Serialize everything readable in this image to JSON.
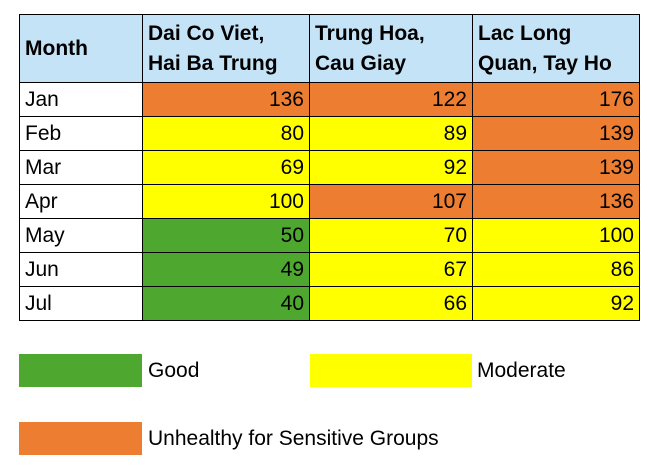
{
  "chart_data": {
    "type": "table",
    "header": {
      "month": "Month",
      "columns": [
        [
          "Dai Co Viet,",
          "Hai Ba Trung"
        ],
        [
          "Trung Hoa,",
          "Cau Giay"
        ],
        [
          "Lac Long",
          "Quan, Tay Ho"
        ]
      ]
    },
    "rows": [
      {
        "month": "Jan",
        "values": [
          136,
          122,
          176
        ],
        "levels": [
          "unhealthy",
          "unhealthy",
          "unhealthy"
        ]
      },
      {
        "month": "Feb",
        "values": [
          80,
          89,
          139
        ],
        "levels": [
          "moderate",
          "moderate",
          "unhealthy"
        ]
      },
      {
        "month": "Mar",
        "values": [
          69,
          92,
          139
        ],
        "levels": [
          "moderate",
          "moderate",
          "unhealthy"
        ]
      },
      {
        "month": "Apr",
        "values": [
          100,
          107,
          136
        ],
        "levels": [
          "moderate",
          "unhealthy",
          "unhealthy"
        ]
      },
      {
        "month": "May",
        "values": [
          50,
          70,
          100
        ],
        "levels": [
          "good",
          "moderate",
          "moderate"
        ]
      },
      {
        "month": "Jun",
        "values": [
          49,
          67,
          86
        ],
        "levels": [
          "good",
          "moderate",
          "moderate"
        ]
      },
      {
        "month": "Jul",
        "values": [
          40,
          66,
          92
        ],
        "levels": [
          "good",
          "moderate",
          "moderate"
        ]
      }
    ],
    "legend": [
      {
        "key": "good",
        "label": "Good",
        "color": "#4ea72e"
      },
      {
        "key": "moderate",
        "label": "Moderate",
        "color": "#ffff00"
      },
      {
        "key": "unhealthy",
        "label": "Unhealthy for Sensitive Groups",
        "color": "#ed7d31"
      }
    ],
    "header_color": "#c5e3f6"
  }
}
